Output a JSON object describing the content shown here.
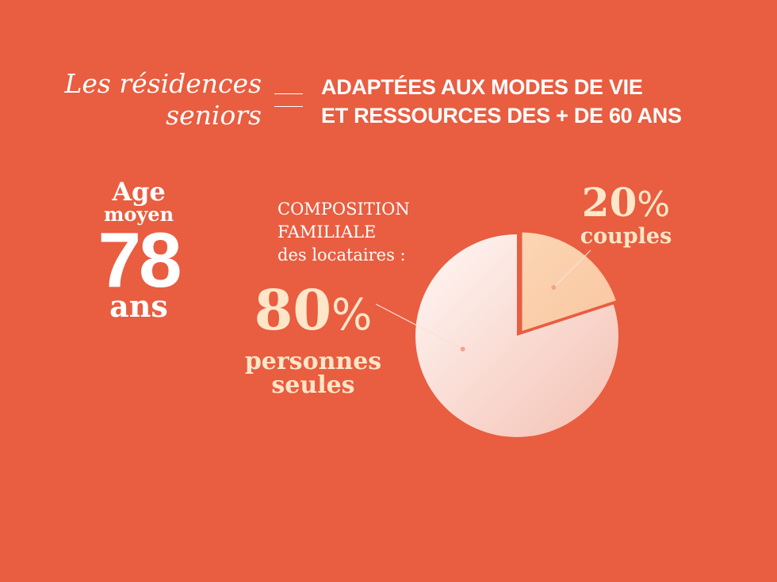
{
  "header": {
    "left_line1": "Les résidences",
    "left_line2": "seniors",
    "right_line1": "ADAPTÉES AUX MODES DE VIE",
    "right_line2": "ET RESSOURCES DES + DE 60 ANS"
  },
  "age": {
    "label": "Age",
    "sublabel": "moyen",
    "value": "78",
    "unit": "ans"
  },
  "composition": {
    "title_line1": "COMPOSITION",
    "title_line2": "FAMILIALE",
    "title_line3": "des locataires :"
  },
  "chart_data": {
    "type": "pie",
    "title": "",
    "slices": [
      {
        "label_line1": "personnes",
        "label_line2": "seules",
        "value": 80,
        "value_text": "80",
        "color": "#fbe3de"
      },
      {
        "label_line1": "couples",
        "value": 20,
        "value_text": "20",
        "color": "#fccfab"
      }
    ],
    "percent_symbol": "%"
  }
}
